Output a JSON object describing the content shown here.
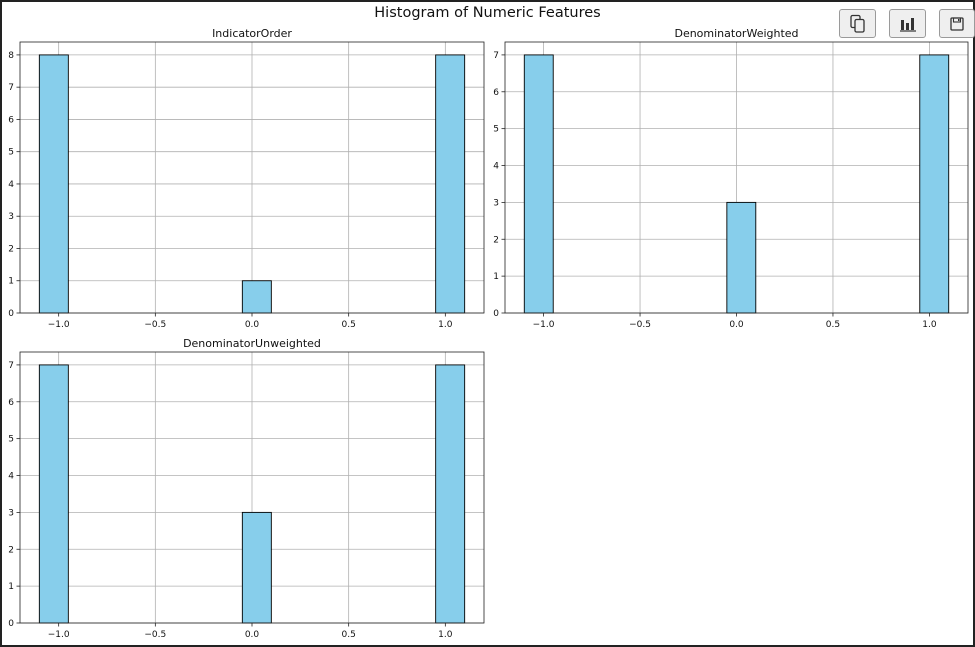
{
  "figure": {
    "title": "Histogram of Numeric Features"
  },
  "toolbar": {
    "buttons": [
      {
        "name": "copy-button",
        "icon": "copy-icon"
      },
      {
        "name": "chart-button",
        "icon": "bar-chart-icon"
      },
      {
        "name": "save-button",
        "icon": "save-icon"
      }
    ]
  },
  "colors": {
    "bar_fill": "#87ceeb",
    "bar_edge": "#000000",
    "grid": "#b0b0b0"
  },
  "chart_data": [
    {
      "type": "bar",
      "title": "IndicatorOrder",
      "xlim": [
        -1.2,
        1.2
      ],
      "ylim": [
        0,
        8.4
      ],
      "xticks": [
        -1.0,
        -0.5,
        0.0,
        0.5,
        1.0
      ],
      "xtick_labels": [
        "−1.0",
        "−0.5",
        "0.0",
        "0.5",
        "1.0"
      ],
      "yticks": [
        0,
        1,
        2,
        3,
        4,
        5,
        6,
        7,
        8
      ],
      "bin_width": 0.15,
      "bars": [
        {
          "x": -1.025,
          "value": 8
        },
        {
          "x": 0.025,
          "value": 1
        },
        {
          "x": 1.025,
          "value": 8
        }
      ],
      "grid": true
    },
    {
      "type": "bar",
      "title": "DenominatorWeighted",
      "xlim": [
        -1.2,
        1.2
      ],
      "ylim": [
        0,
        7.35
      ],
      "xticks": [
        -1.0,
        -0.5,
        0.0,
        0.5,
        1.0
      ],
      "xtick_labels": [
        "−1.0",
        "−0.5",
        "0.0",
        "0.5",
        "1.0"
      ],
      "yticks": [
        0,
        1,
        2,
        3,
        4,
        5,
        6,
        7
      ],
      "bin_width": 0.15,
      "bars": [
        {
          "x": -1.025,
          "value": 7
        },
        {
          "x": 0.025,
          "value": 3
        },
        {
          "x": 1.025,
          "value": 7
        }
      ],
      "grid": true
    },
    {
      "type": "bar",
      "title": "DenominatorUnweighted",
      "xlim": [
        -1.2,
        1.2
      ],
      "ylim": [
        0,
        7.35
      ],
      "xticks": [
        -1.0,
        -0.5,
        0.0,
        0.5,
        1.0
      ],
      "xtick_labels": [
        "−1.0",
        "−0.5",
        "0.0",
        "0.5",
        "1.0"
      ],
      "yticks": [
        0,
        1,
        2,
        3,
        4,
        5,
        6,
        7
      ],
      "bin_width": 0.15,
      "bars": [
        {
          "x": -1.025,
          "value": 7
        },
        {
          "x": 0.025,
          "value": 3
        },
        {
          "x": 1.025,
          "value": 7
        }
      ],
      "grid": true
    }
  ]
}
